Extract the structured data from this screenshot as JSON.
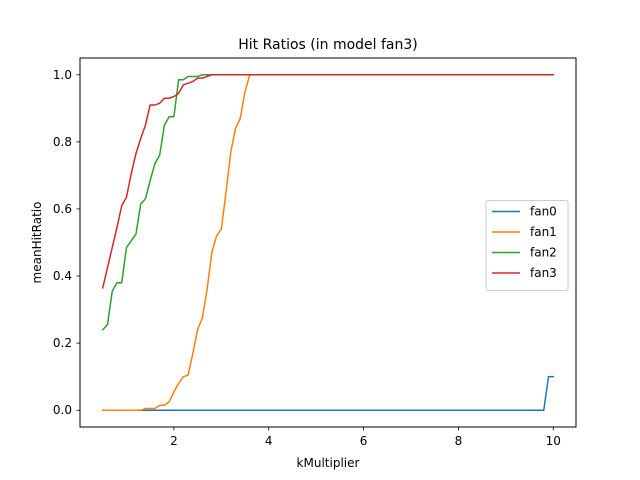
{
  "chart_data": {
    "type": "line",
    "title": "Hit Ratios (in model fan3)",
    "xlabel": "kMultiplier",
    "ylabel": "meanHitRatio",
    "xlim": [
      0.02,
      10.48
    ],
    "ylim": [
      -0.05,
      1.05
    ],
    "xticks": [
      2,
      4,
      6,
      8,
      10
    ],
    "xtick_labels": [
      "2",
      "4",
      "6",
      "8",
      "10"
    ],
    "yticks": [
      0.0,
      0.2,
      0.4,
      0.6,
      0.8,
      1.0
    ],
    "ytick_labels": [
      "0.0",
      "0.2",
      "0.4",
      "0.6",
      "0.8",
      "1.0"
    ],
    "grid": false,
    "legend_position": "center-right",
    "series": [
      {
        "name": "fan0",
        "color": "#1f77b4",
        "x": [
          0.5,
          1.0,
          2.0,
          4.0,
          6.0,
          8.0,
          9.8,
          9.9,
          10.0
        ],
        "y": [
          0.0,
          0.0,
          0.0,
          0.0,
          0.0,
          0.0,
          0.0,
          0.1,
          0.1
        ]
      },
      {
        "name": "fan1",
        "color": "#ff7f0e",
        "x": [
          0.5,
          0.6,
          0.7,
          0.8,
          0.9,
          1.0,
          1.1,
          1.2,
          1.3,
          1.4,
          1.5,
          1.6,
          1.7,
          1.8,
          1.9,
          2.0,
          2.1,
          2.2,
          2.3,
          2.4,
          2.5,
          2.6,
          2.7,
          2.8,
          2.9,
          3.0,
          3.1,
          3.2,
          3.3,
          3.4,
          3.5,
          3.6,
          3.7,
          4.0,
          6.0,
          8.0,
          10.0
        ],
        "y": [
          0.0,
          0.0,
          0.0,
          0.0,
          0.0,
          0.0,
          0.0,
          0.0,
          0.0,
          0.005,
          0.005,
          0.005,
          0.015,
          0.015,
          0.025,
          0.055,
          0.08,
          0.1,
          0.105,
          0.17,
          0.24,
          0.275,
          0.36,
          0.47,
          0.52,
          0.54,
          0.65,
          0.77,
          0.84,
          0.87,
          0.95,
          1.0,
          1.0,
          1.0,
          1.0,
          1.0,
          1.0
        ]
      },
      {
        "name": "fan2",
        "color": "#2ca02c",
        "x": [
          0.5,
          0.6,
          0.7,
          0.8,
          0.9,
          1.0,
          1.1,
          1.2,
          1.3,
          1.4,
          1.5,
          1.6,
          1.7,
          1.8,
          1.9,
          2.0,
          2.1,
          2.2,
          2.3,
          2.4,
          2.5,
          2.6,
          2.7,
          2.8,
          3.0,
          4.0,
          6.0,
          8.0,
          10.0
        ],
        "y": [
          0.24,
          0.255,
          0.355,
          0.38,
          0.38,
          0.485,
          0.505,
          0.525,
          0.615,
          0.63,
          0.685,
          0.735,
          0.76,
          0.85,
          0.875,
          0.875,
          0.985,
          0.985,
          0.995,
          0.995,
          0.995,
          1.0,
          1.0,
          1.0,
          1.0,
          1.0,
          1.0,
          1.0,
          1.0
        ]
      },
      {
        "name": "fan3",
        "color": "#d62728",
        "x": [
          0.5,
          0.6,
          0.7,
          0.8,
          0.9,
          1.0,
          1.1,
          1.2,
          1.3,
          1.4,
          1.5,
          1.6,
          1.7,
          1.8,
          1.9,
          2.0,
          2.1,
          2.2,
          2.3,
          2.4,
          2.5,
          2.6,
          2.7,
          2.8,
          3.0,
          4.0,
          6.0,
          8.0,
          10.0
        ],
        "y": [
          0.365,
          0.425,
          0.485,
          0.545,
          0.61,
          0.635,
          0.705,
          0.765,
          0.81,
          0.85,
          0.91,
          0.91,
          0.915,
          0.93,
          0.93,
          0.935,
          0.945,
          0.97,
          0.975,
          0.98,
          0.99,
          0.99,
          0.995,
          1.0,
          1.0,
          1.0,
          1.0,
          1.0,
          1.0
        ]
      }
    ]
  }
}
